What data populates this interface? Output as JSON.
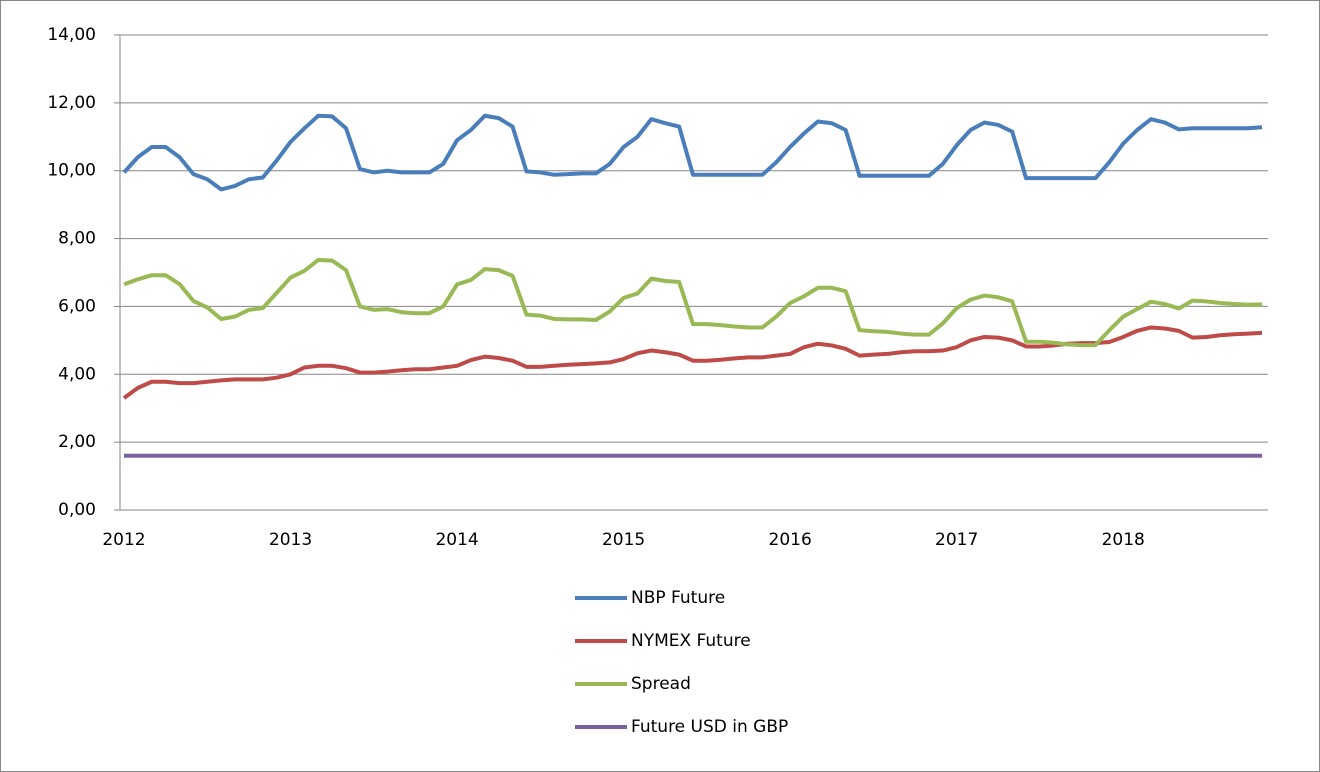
{
  "chart_data": {
    "type": "line",
    "categories": [
      "2012",
      null,
      null,
      null,
      null,
      null,
      null,
      null,
      null,
      null,
      null,
      null,
      "2013",
      null,
      null,
      null,
      null,
      null,
      null,
      null,
      null,
      null,
      null,
      null,
      "2014",
      null,
      null,
      null,
      null,
      null,
      null,
      null,
      null,
      null,
      null,
      null,
      "2015",
      null,
      null,
      null,
      null,
      null,
      null,
      null,
      null,
      null,
      null,
      null,
      "2016",
      null,
      null,
      null,
      null,
      null,
      null,
      null,
      null,
      null,
      null,
      null,
      "2017",
      null,
      null,
      null,
      null,
      null,
      null,
      null,
      null,
      null,
      null,
      null,
      "2018",
      null,
      null,
      null,
      null,
      null,
      null,
      null,
      null,
      null,
      null
    ],
    "series": [
      {
        "name": "NBP Future",
        "color": "#4a7ebb",
        "values": [
          9.95,
          10.4,
          10.7,
          10.7,
          10.4,
          9.9,
          9.75,
          9.45,
          9.55,
          9.75,
          9.8,
          10.3,
          10.85,
          11.25,
          11.62,
          11.6,
          11.25,
          10.05,
          9.95,
          10.0,
          9.95,
          9.95,
          9.95,
          10.2,
          10.9,
          11.2,
          11.62,
          11.55,
          11.3,
          9.98,
          9.95,
          9.88,
          9.9,
          9.92,
          9.92,
          10.2,
          10.7,
          11.0,
          11.52,
          11.4,
          11.3,
          9.88,
          9.88,
          9.88,
          9.88,
          9.88,
          9.88,
          10.25,
          10.7,
          11.1,
          11.45,
          11.4,
          11.2,
          9.85,
          9.85,
          9.85,
          9.85,
          9.85,
          9.85,
          10.2,
          10.75,
          11.2,
          11.42,
          11.35,
          11.15,
          9.78,
          9.78,
          9.78,
          9.78,
          9.78,
          9.78,
          10.25,
          10.8,
          11.2,
          11.52,
          11.42,
          11.22,
          11.25,
          11.25,
          11.25,
          11.25,
          11.25,
          11.28
        ]
      },
      {
        "name": "NYMEX Future",
        "color": "#be4b48",
        "values": [
          3.3,
          3.6,
          3.78,
          3.78,
          3.74,
          3.74,
          3.78,
          3.82,
          3.85,
          3.85,
          3.85,
          3.9,
          4.0,
          4.2,
          4.25,
          4.25,
          4.18,
          4.05,
          4.05,
          4.08,
          4.12,
          4.15,
          4.15,
          4.2,
          4.25,
          4.42,
          4.52,
          4.48,
          4.4,
          4.22,
          4.22,
          4.25,
          4.28,
          4.3,
          4.32,
          4.35,
          4.45,
          4.62,
          4.7,
          4.65,
          4.58,
          4.4,
          4.4,
          4.43,
          4.47,
          4.5,
          4.5,
          4.55,
          4.6,
          4.8,
          4.9,
          4.85,
          4.75,
          4.55,
          4.58,
          4.6,
          4.65,
          4.68,
          4.68,
          4.7,
          4.8,
          5.0,
          5.1,
          5.08,
          5.0,
          4.82,
          4.82,
          4.85,
          4.9,
          4.92,
          4.92,
          4.95,
          5.1,
          5.28,
          5.38,
          5.35,
          5.28,
          5.08,
          5.1,
          5.15,
          5.18,
          5.2,
          5.22
        ]
      },
      {
        "name": "Spread",
        "color": "#98b954",
        "values": [
          6.65,
          6.8,
          6.92,
          6.92,
          6.66,
          6.16,
          5.97,
          5.63,
          5.7,
          5.9,
          5.95,
          6.4,
          6.85,
          7.05,
          7.37,
          7.35,
          7.07,
          6.0,
          5.9,
          5.92,
          5.83,
          5.8,
          5.8,
          6.0,
          6.65,
          6.78,
          7.1,
          7.07,
          6.9,
          5.76,
          5.73,
          5.63,
          5.62,
          5.62,
          5.6,
          5.85,
          6.25,
          6.38,
          6.82,
          6.75,
          6.72,
          5.48,
          5.48,
          5.45,
          5.41,
          5.38,
          5.38,
          5.7,
          6.1,
          6.3,
          6.55,
          6.55,
          6.45,
          5.3,
          5.27,
          5.25,
          5.2,
          5.17,
          5.17,
          5.5,
          5.95,
          6.2,
          6.32,
          6.27,
          6.15,
          4.96,
          4.96,
          4.93,
          4.88,
          4.86,
          4.86,
          5.3,
          5.7,
          5.92,
          6.14,
          6.07,
          5.94,
          6.17,
          6.15,
          6.1,
          6.07,
          6.05,
          6.06
        ]
      },
      {
        "name": "Future USD in GBP",
        "color": "#7d60a0",
        "values": [
          1.6,
          1.6,
          1.6,
          1.6,
          1.6,
          1.6,
          1.6,
          1.6,
          1.6,
          1.6,
          1.6,
          1.6,
          1.6,
          1.6,
          1.6,
          1.6,
          1.6,
          1.6,
          1.6,
          1.6,
          1.6,
          1.6,
          1.6,
          1.6,
          1.6,
          1.6,
          1.6,
          1.6,
          1.6,
          1.6,
          1.6,
          1.6,
          1.6,
          1.6,
          1.6,
          1.6,
          1.6,
          1.6,
          1.6,
          1.6,
          1.6,
          1.6,
          1.6,
          1.6,
          1.6,
          1.6,
          1.6,
          1.6,
          1.6,
          1.6,
          1.6,
          1.6,
          1.6,
          1.6,
          1.6,
          1.6,
          1.6,
          1.6,
          1.6,
          1.6,
          1.6,
          1.6,
          1.6,
          1.6,
          1.6,
          1.6,
          1.6,
          1.6,
          1.6,
          1.6,
          1.6,
          1.6,
          1.6,
          1.6,
          1.6,
          1.6,
          1.6,
          1.6,
          1.6,
          1.6,
          1.6,
          1.6,
          1.6
        ]
      }
    ],
    "ylim": [
      0,
      14
    ],
    "yticks": [
      {
        "value": 0,
        "label": "0,00"
      },
      {
        "value": 2,
        "label": "2,00"
      },
      {
        "value": 4,
        "label": "4,00"
      },
      {
        "value": 6,
        "label": "6,00"
      },
      {
        "value": 8,
        "label": "8,00"
      },
      {
        "value": 10,
        "label": "10,00"
      },
      {
        "value": 12,
        "label": "12,00"
      },
      {
        "value": 14,
        "label": "14,00"
      }
    ],
    "grid": true,
    "legend": "bottom"
  }
}
